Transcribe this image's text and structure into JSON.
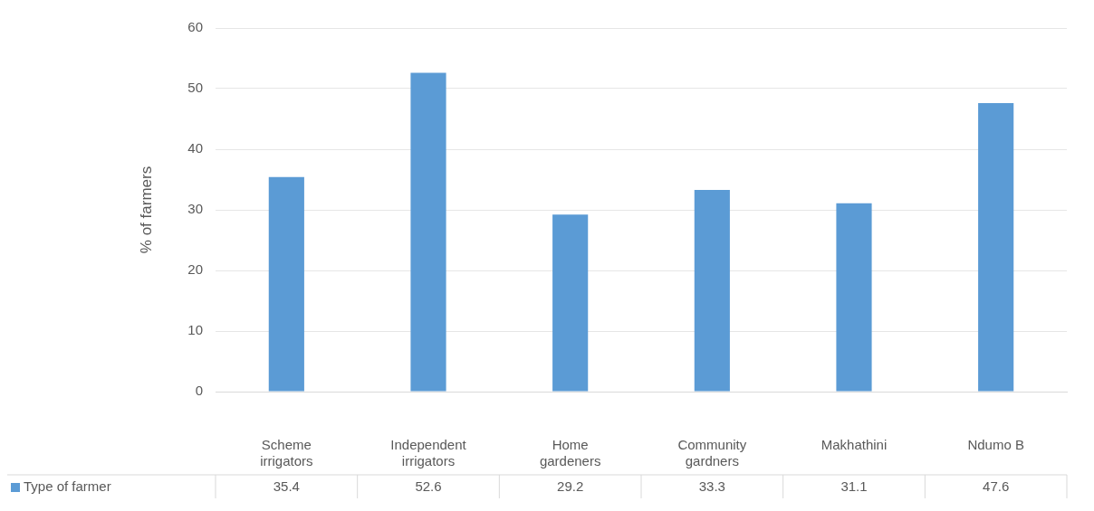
{
  "chart_data": {
    "type": "bar",
    "ylabel": "% of farmers",
    "categories": [
      "Scheme irrigators",
      "Independent irrigators",
      "Home gardeners",
      "Community gardners",
      "Makhathini",
      "Ndumo B"
    ],
    "series": [
      {
        "name": "Type of farmer",
        "color": "#5b9bd5",
        "values": [
          35.4,
          52.6,
          29.2,
          33.3,
          31.1,
          47.6
        ]
      }
    ],
    "ylim": [
      0,
      60
    ],
    "yticks": [
      0,
      10,
      20,
      30,
      40,
      50,
      60
    ],
    "grid": "y",
    "data_labels": true,
    "legend": "bottom"
  }
}
